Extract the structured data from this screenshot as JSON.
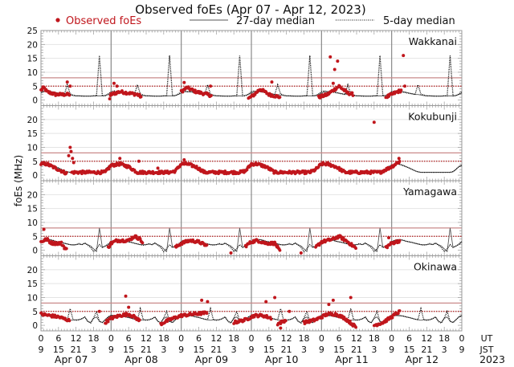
{
  "chart_data": {
    "type": "scatter",
    "title": "Observed foEs (Apr 07 - Apr 12, 2023)",
    "ylabel": "foEs (MHz)",
    "ylim": [
      -2,
      25
    ],
    "yticks": [
      0,
      5,
      10,
      15,
      20,
      25
    ],
    "xlim_hours_ut": [
      0,
      144
    ],
    "grid": true,
    "legend": {
      "placement": "top",
      "entries": [
        "Observed foEs",
        "27-day median",
        "5-day median"
      ]
    },
    "colors": {
      "observed": "#c0161c",
      "median27": "#555555",
      "median5": "#000000",
      "ref_solid": "#c98a8a",
      "ref_dotted": "#b01c1c",
      "grid": "#e4e4e4",
      "daylines": "#888888"
    },
    "reference_lines": {
      "solid": 8,
      "dotted": 5
    },
    "x_tick_labels": {
      "ut": [
        "0",
        "6",
        "12",
        "18",
        "0",
        "6",
        "12",
        "18",
        "0",
        "6",
        "12",
        "18",
        "0",
        "6",
        "12",
        "18",
        "0",
        "6",
        "12",
        "18",
        "0",
        "6",
        "12",
        "18",
        "0"
      ],
      "jst": [
        "9",
        "15",
        "21",
        "3",
        "9",
        "15",
        "21",
        "3",
        "9",
        "15",
        "21",
        "3",
        "9",
        "15",
        "21",
        "3",
        "9",
        "15",
        "21",
        "3",
        "9",
        "15",
        "21",
        "3",
        "9"
      ],
      "ut_label": "UT",
      "jst_label": "JST"
    },
    "days": [
      "Apr 07",
      "Apr 08",
      "Apr 09",
      "Apr 10",
      "Apr 11",
      "Apr 12"
    ],
    "year": "2023",
    "panels": [
      {
        "station": "Wakkanai",
        "median27": [
          2.5,
          3,
          3,
          3,
          3,
          2.8,
          2.5,
          2.3,
          2,
          2,
          1.8,
          1.6,
          1.5,
          1.5,
          1.5,
          1.4,
          1.4,
          1.4,
          1.5,
          1.5,
          1.5,
          1.5,
          1.7,
          2
        ],
        "median5": [
          3,
          3.3,
          3,
          3,
          2.8,
          2.6,
          2.4,
          2.2,
          2,
          5.5,
          2.2,
          1.8,
          1.5,
          1.5,
          1.4,
          1.4,
          1.4,
          1.4,
          1.5,
          1.5,
          16,
          1.5,
          1.5,
          2.2
        ],
        "observed_segments": [
          [
            [
              0,
              3.5
            ],
            [
              1,
              4.5
            ],
            [
              2,
              3
            ],
            [
              5,
              2
            ],
            [
              8,
              2
            ],
            [
              10,
              2
            ]
          ],
          [
            [
              23.5,
              0.5
            ],
            [
              24,
              2
            ],
            [
              27,
              3
            ],
            [
              30,
              2.5
            ],
            [
              33,
              2
            ],
            [
              34.5,
              1
            ]
          ],
          [
            [
              48,
              3
            ],
            [
              50,
              4.5
            ],
            [
              53,
              3
            ],
            [
              57,
              2
            ],
            [
              58.5,
              1.5
            ]
          ],
          [
            [
              71,
              0.5
            ],
            [
              73,
              2
            ],
            [
              75,
              4
            ],
            [
              78,
              2
            ],
            [
              82,
              1
            ]
          ],
          [
            [
              95,
              1
            ],
            [
              98,
              2
            ],
            [
              100,
              3.5
            ],
            [
              102,
              5
            ],
            [
              105,
              2.5
            ],
            [
              107,
              2
            ]
          ],
          [
            [
              118,
              1
            ],
            [
              120,
              2
            ],
            [
              122,
              3
            ],
            [
              123.5,
              3.5
            ]
          ]
        ],
        "observed_outliers": [
          [
            9,
            6.5
          ],
          [
            10,
            5
          ],
          [
            25,
            6
          ],
          [
            26,
            5
          ],
          [
            49,
            6.3
          ],
          [
            58,
            5
          ],
          [
            79,
            6.5
          ],
          [
            99,
            15.5
          ],
          [
            100.5,
            11
          ],
          [
            101.5,
            14
          ],
          [
            100,
            6
          ],
          [
            124,
            16
          ],
          [
            124.5,
            5
          ]
        ]
      },
      {
        "station": "Kokubunji",
        "median27": [
          3.5,
          3.8,
          4,
          3.8,
          3.5,
          3,
          2.5,
          2,
          1.5,
          1.2,
          1,
          1,
          1,
          1,
          1,
          1,
          1,
          1,
          1,
          1,
          1,
          1.2,
          2,
          3
        ],
        "median5": [
          3.6,
          3.9,
          4,
          3.8,
          3.4,
          3,
          2.6,
          2.1,
          1.6,
          1.2,
          1,
          1,
          1,
          1,
          1,
          1,
          1,
          1,
          1,
          1,
          1,
          1.3,
          2.1,
          3.1
        ],
        "observed_segments": [
          [
            [
              0,
              4
            ],
            [
              2,
              4
            ],
            [
              4,
              3
            ],
            [
              6,
              2
            ],
            [
              8,
              1
            ],
            [
              9,
              0.5
            ]
          ],
          [
            [
              10.5,
              1
            ],
            [
              12,
              1
            ],
            [
              20,
              1
            ],
            [
              22,
              1
            ],
            [
              24,
              3.5
            ],
            [
              27,
              4
            ],
            [
              30,
              3
            ],
            [
              33,
              1
            ],
            [
              44,
              1
            ],
            [
              46,
              1.5
            ],
            [
              48,
              4
            ],
            [
              50,
              4
            ],
            [
              53,
              3
            ],
            [
              56,
              1
            ],
            [
              68,
              1
            ],
            [
              70,
              1.5
            ],
            [
              72,
              4
            ],
            [
              74,
              4
            ],
            [
              77,
              3
            ],
            [
              80,
              1
            ],
            [
              92,
              1
            ],
            [
              94,
              2
            ],
            [
              96,
              4
            ],
            [
              98,
              4
            ],
            [
              101,
              3
            ],
            [
              104,
              1
            ],
            [
              116,
              1
            ],
            [
              118,
              2
            ],
            [
              120,
              3
            ],
            [
              122,
              4.5
            ],
            [
              123,
              5
            ]
          ]
        ],
        "observed_outliers": [
          [
            10,
            10
          ],
          [
            10.3,
            8.5
          ],
          [
            9.5,
            7
          ],
          [
            10.8,
            6
          ],
          [
            11.2,
            4.5
          ],
          [
            27,
            6
          ],
          [
            33.5,
            5
          ],
          [
            40,
            2.5
          ],
          [
            49,
            5.5
          ],
          [
            114,
            19
          ],
          [
            122.5,
            6
          ]
        ]
      },
      {
        "station": "Yamagawa",
        "median27": [
          3,
          3.5,
          3.8,
          3.8,
          3.5,
          3.2,
          3,
          2.8,
          2.5,
          2.2,
          2,
          2,
          2,
          2.2,
          2,
          2.5,
          2,
          1.5,
          0.5,
          -0.5,
          8,
          1,
          1.5,
          2
        ],
        "median5": [
          3.1,
          3.5,
          3.8,
          3.8,
          3.6,
          3.2,
          3,
          2.8,
          2.5,
          2.3,
          2,
          1.8,
          2,
          2.4,
          2,
          2.6,
          1.8,
          1,
          -0.5,
          0.5,
          2,
          1,
          1.5,
          2.2
        ],
        "observed_segments": [
          [
            [
              0,
              3
            ],
            [
              2,
              4
            ],
            [
              3,
              3
            ],
            [
              4,
              2.5
            ],
            [
              7,
              2.5
            ],
            [
              8,
              1
            ],
            [
              9,
              0
            ]
          ],
          [
            [
              23,
              1
            ],
            [
              24,
              2.5
            ],
            [
              26,
              3.5
            ],
            [
              30,
              3.5
            ],
            [
              32,
              5
            ],
            [
              34,
              4
            ],
            [
              35,
              2
            ]
          ],
          [
            [
              46,
              1
            ],
            [
              48,
              2.5
            ],
            [
              51,
              3.5
            ],
            [
              54,
              3
            ],
            [
              57,
              1.5
            ]
          ],
          [
            [
              70,
              1.5
            ],
            [
              72,
              3
            ],
            [
              74,
              3.5
            ],
            [
              77,
              2.5
            ],
            [
              80,
              2.5
            ],
            [
              81,
              1
            ],
            [
              82,
              -1
            ]
          ],
          [
            [
              94,
              1
            ],
            [
              96,
              3
            ],
            [
              100,
              4
            ],
            [
              102,
              5
            ],
            [
              105,
              3
            ],
            [
              108,
              0.5
            ]
          ],
          [
            [
              118,
              1
            ],
            [
              120,
              2.5
            ],
            [
              123,
              3.5
            ]
          ]
        ],
        "observed_outliers": [
          [
            1,
            7.5
          ],
          [
            65,
            -1
          ],
          [
            89,
            -1
          ],
          [
            119,
            4.5
          ]
        ]
      },
      {
        "station": "Okinawa",
        "median27": [
          3.5,
          3.5,
          3.5,
          3.5,
          3.3,
          3,
          2.8,
          2.5,
          2.2,
          2,
          1.8,
          2,
          2,
          2,
          2.3,
          3,
          1.5,
          1,
          2.5,
          3,
          1.5,
          1,
          2,
          3
        ],
        "median5": [
          3.6,
          3.6,
          3.5,
          3.4,
          3.3,
          3,
          2.8,
          2.5,
          2.2,
          2,
          6,
          2,
          1.8,
          2,
          2.4,
          3,
          1.4,
          0.8,
          2.6,
          5,
          1.4,
          1,
          2,
          3
        ],
        "observed_segments": [
          [
            [
              0,
              4
            ],
            [
              3,
              3.5
            ],
            [
              6,
              3
            ],
            [
              9,
              2
            ],
            [
              10,
              1.5
            ]
          ],
          [
            [
              22,
              1
            ],
            [
              24,
              2.5
            ],
            [
              27,
              3.5
            ],
            [
              30,
              4
            ],
            [
              32,
              3
            ],
            [
              34,
              1.5
            ]
          ],
          [
            [
              41,
              0.5
            ],
            [
              44,
              2
            ],
            [
              48,
              3.5
            ],
            [
              52,
              4
            ],
            [
              57,
              4.5
            ]
          ],
          [
            [
              66,
              1
            ],
            [
              70,
              2
            ],
            [
              73,
              3.5
            ],
            [
              76,
              3.5
            ],
            [
              79,
              2.5
            ]
          ],
          [
            [
              81,
              0.5
            ],
            [
              84,
              2
            ]
          ],
          [
            [
              90,
              1
            ],
            [
              94,
              2
            ],
            [
              98,
              4
            ],
            [
              101,
              4
            ],
            [
              104,
              2.5
            ],
            [
              107,
              0
            ],
            [
              108,
              -1
            ]
          ],
          [
            [
              114,
              0
            ],
            [
              117,
              1
            ],
            [
              120,
              3
            ],
            [
              122,
              4.5
            ],
            [
              123,
              5
            ]
          ]
        ],
        "observed_outliers": [
          [
            29,
            10.5
          ],
          [
            30,
            6.5
          ],
          [
            55,
            9
          ],
          [
            57,
            8.5
          ],
          [
            77,
            8.5
          ],
          [
            80,
            10
          ],
          [
            82,
            -1
          ],
          [
            85,
            5
          ],
          [
            98.5,
            7.5
          ],
          [
            100,
            9
          ],
          [
            106,
            10
          ],
          [
            20,
            5
          ]
        ]
      }
    ]
  }
}
